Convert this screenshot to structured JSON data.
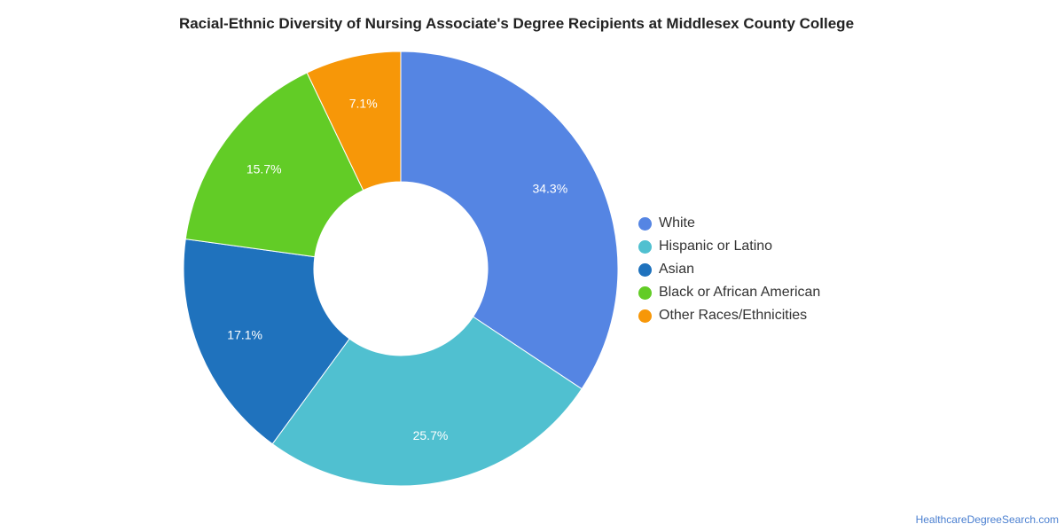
{
  "chart_data": {
    "type": "pie",
    "variant": "donut",
    "title": "Racial-Ethnic Diversity of Nursing Associate's Degree Recipients at Middlesex County College",
    "categories": [
      "White",
      "Hispanic or Latino",
      "Asian",
      "Black or African American",
      "Other Races/Ethnicities"
    ],
    "values": [
      34.3,
      25.7,
      17.1,
      15.7,
      7.1
    ],
    "labels": [
      "34.3%",
      "25.7%",
      "17.1%",
      "15.7%",
      "7.1%"
    ],
    "colors": [
      "#5585e3",
      "#50c0d0",
      "#1f72bd",
      "#62cc26",
      "#f79708"
    ],
    "legend_position": "right"
  },
  "source": {
    "text": "HealthcareDegreeSearch.com"
  }
}
